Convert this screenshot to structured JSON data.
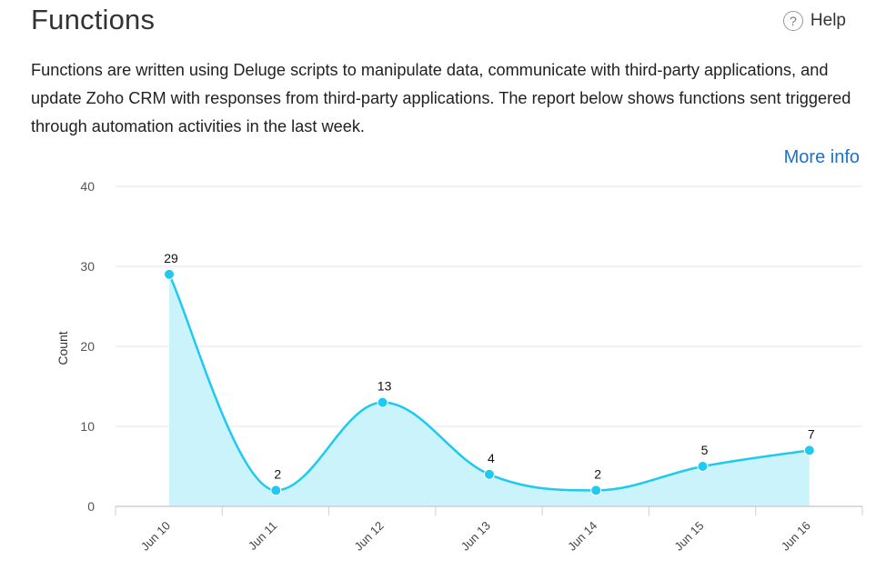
{
  "header": {
    "title": "Functions",
    "help_label": "Help",
    "help_icon": "question-circle-icon"
  },
  "description": "Functions are written using Deluge scripts to manipulate data, communicate with third-party applications, and update Zoho CRM with responses from third-party applications. The report below shows functions sent triggered through automation activities in the last week.",
  "more_info_label": "More info",
  "colors": {
    "line": "#1ec9f2",
    "area": "#cbf3fc",
    "link": "#1a73c9"
  },
  "chart_data": {
    "type": "area",
    "categories": [
      "Jun 10",
      "Jun 11",
      "Jun 12",
      "Jun 13",
      "Jun 14",
      "Jun 15",
      "Jun 16"
    ],
    "values": [
      29,
      2,
      13,
      4,
      2,
      5,
      7
    ],
    "ylabel": "Count",
    "ylim": [
      0,
      40
    ],
    "yticks": [
      0,
      10,
      20,
      30,
      40
    ],
    "grid": true,
    "data_labels": true,
    "curve": "smooth"
  }
}
